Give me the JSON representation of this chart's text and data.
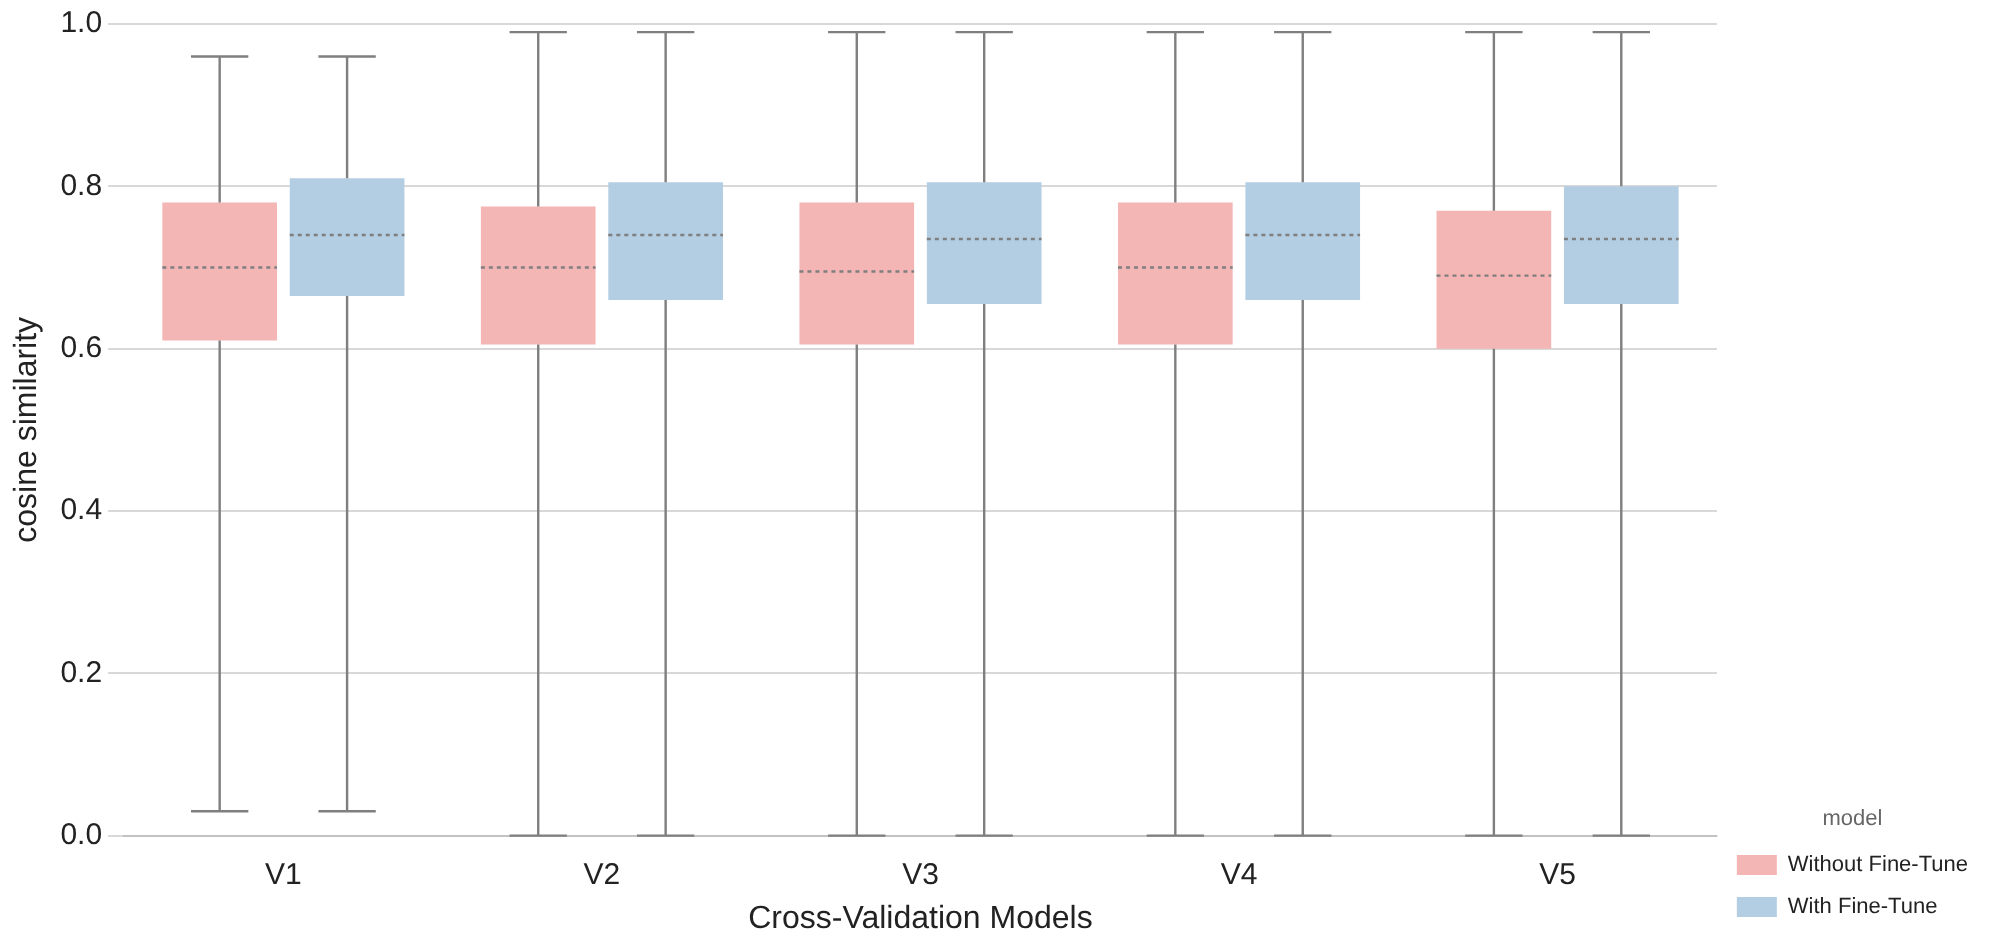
{
  "chart_data": {
    "type": "box",
    "xlabel": "Cross-Validation Models",
    "ylabel": "cosine similarity",
    "legend_title": "model",
    "categories": [
      "V1",
      "V2",
      "V3",
      "V4",
      "V5"
    ],
    "series": [
      {
        "name": "Without Fine-Tune",
        "color": "#f4b6b4",
        "boxes": [
          {
            "low": 0.03,
            "q1": 0.61,
            "median": 0.7,
            "q3": 0.78,
            "high": 0.96
          },
          {
            "low": 0.0,
            "q1": 0.605,
            "median": 0.7,
            "q3": 0.775,
            "high": 0.99
          },
          {
            "low": 0.0,
            "q1": 0.605,
            "median": 0.695,
            "q3": 0.78,
            "high": 0.99
          },
          {
            "low": 0.0,
            "q1": 0.605,
            "median": 0.7,
            "q3": 0.78,
            "high": 0.99
          },
          {
            "low": 0.0,
            "q1": 0.6,
            "median": 0.69,
            "q3": 0.77,
            "high": 0.99
          }
        ]
      },
      {
        "name": "With Fine-Tune",
        "color": "#b3cde3",
        "boxes": [
          {
            "low": 0.03,
            "q1": 0.665,
            "median": 0.74,
            "q3": 0.81,
            "high": 0.96
          },
          {
            "low": 0.0,
            "q1": 0.66,
            "median": 0.74,
            "q3": 0.805,
            "high": 0.99
          },
          {
            "low": 0.0,
            "q1": 0.655,
            "median": 0.735,
            "q3": 0.805,
            "high": 0.99
          },
          {
            "low": 0.0,
            "q1": 0.66,
            "median": 0.74,
            "q3": 0.805,
            "high": 0.99
          },
          {
            "low": 0.0,
            "q1": 0.655,
            "median": 0.735,
            "q3": 0.8,
            "high": 0.99
          }
        ]
      }
    ],
    "ylim": [
      0,
      1
    ],
    "yticks": [
      {
        "value": 0,
        "label": "0.0"
      },
      {
        "value": 0.2,
        "label": "0.2"
      },
      {
        "value": 0.4,
        "label": "0.4"
      },
      {
        "value": 0.6,
        "label": "0.6"
      },
      {
        "value": 0.8,
        "label": "0.8"
      },
      {
        "value": 1,
        "label": "1.0"
      }
    ],
    "grid": "y",
    "legend": "bottom right"
  }
}
